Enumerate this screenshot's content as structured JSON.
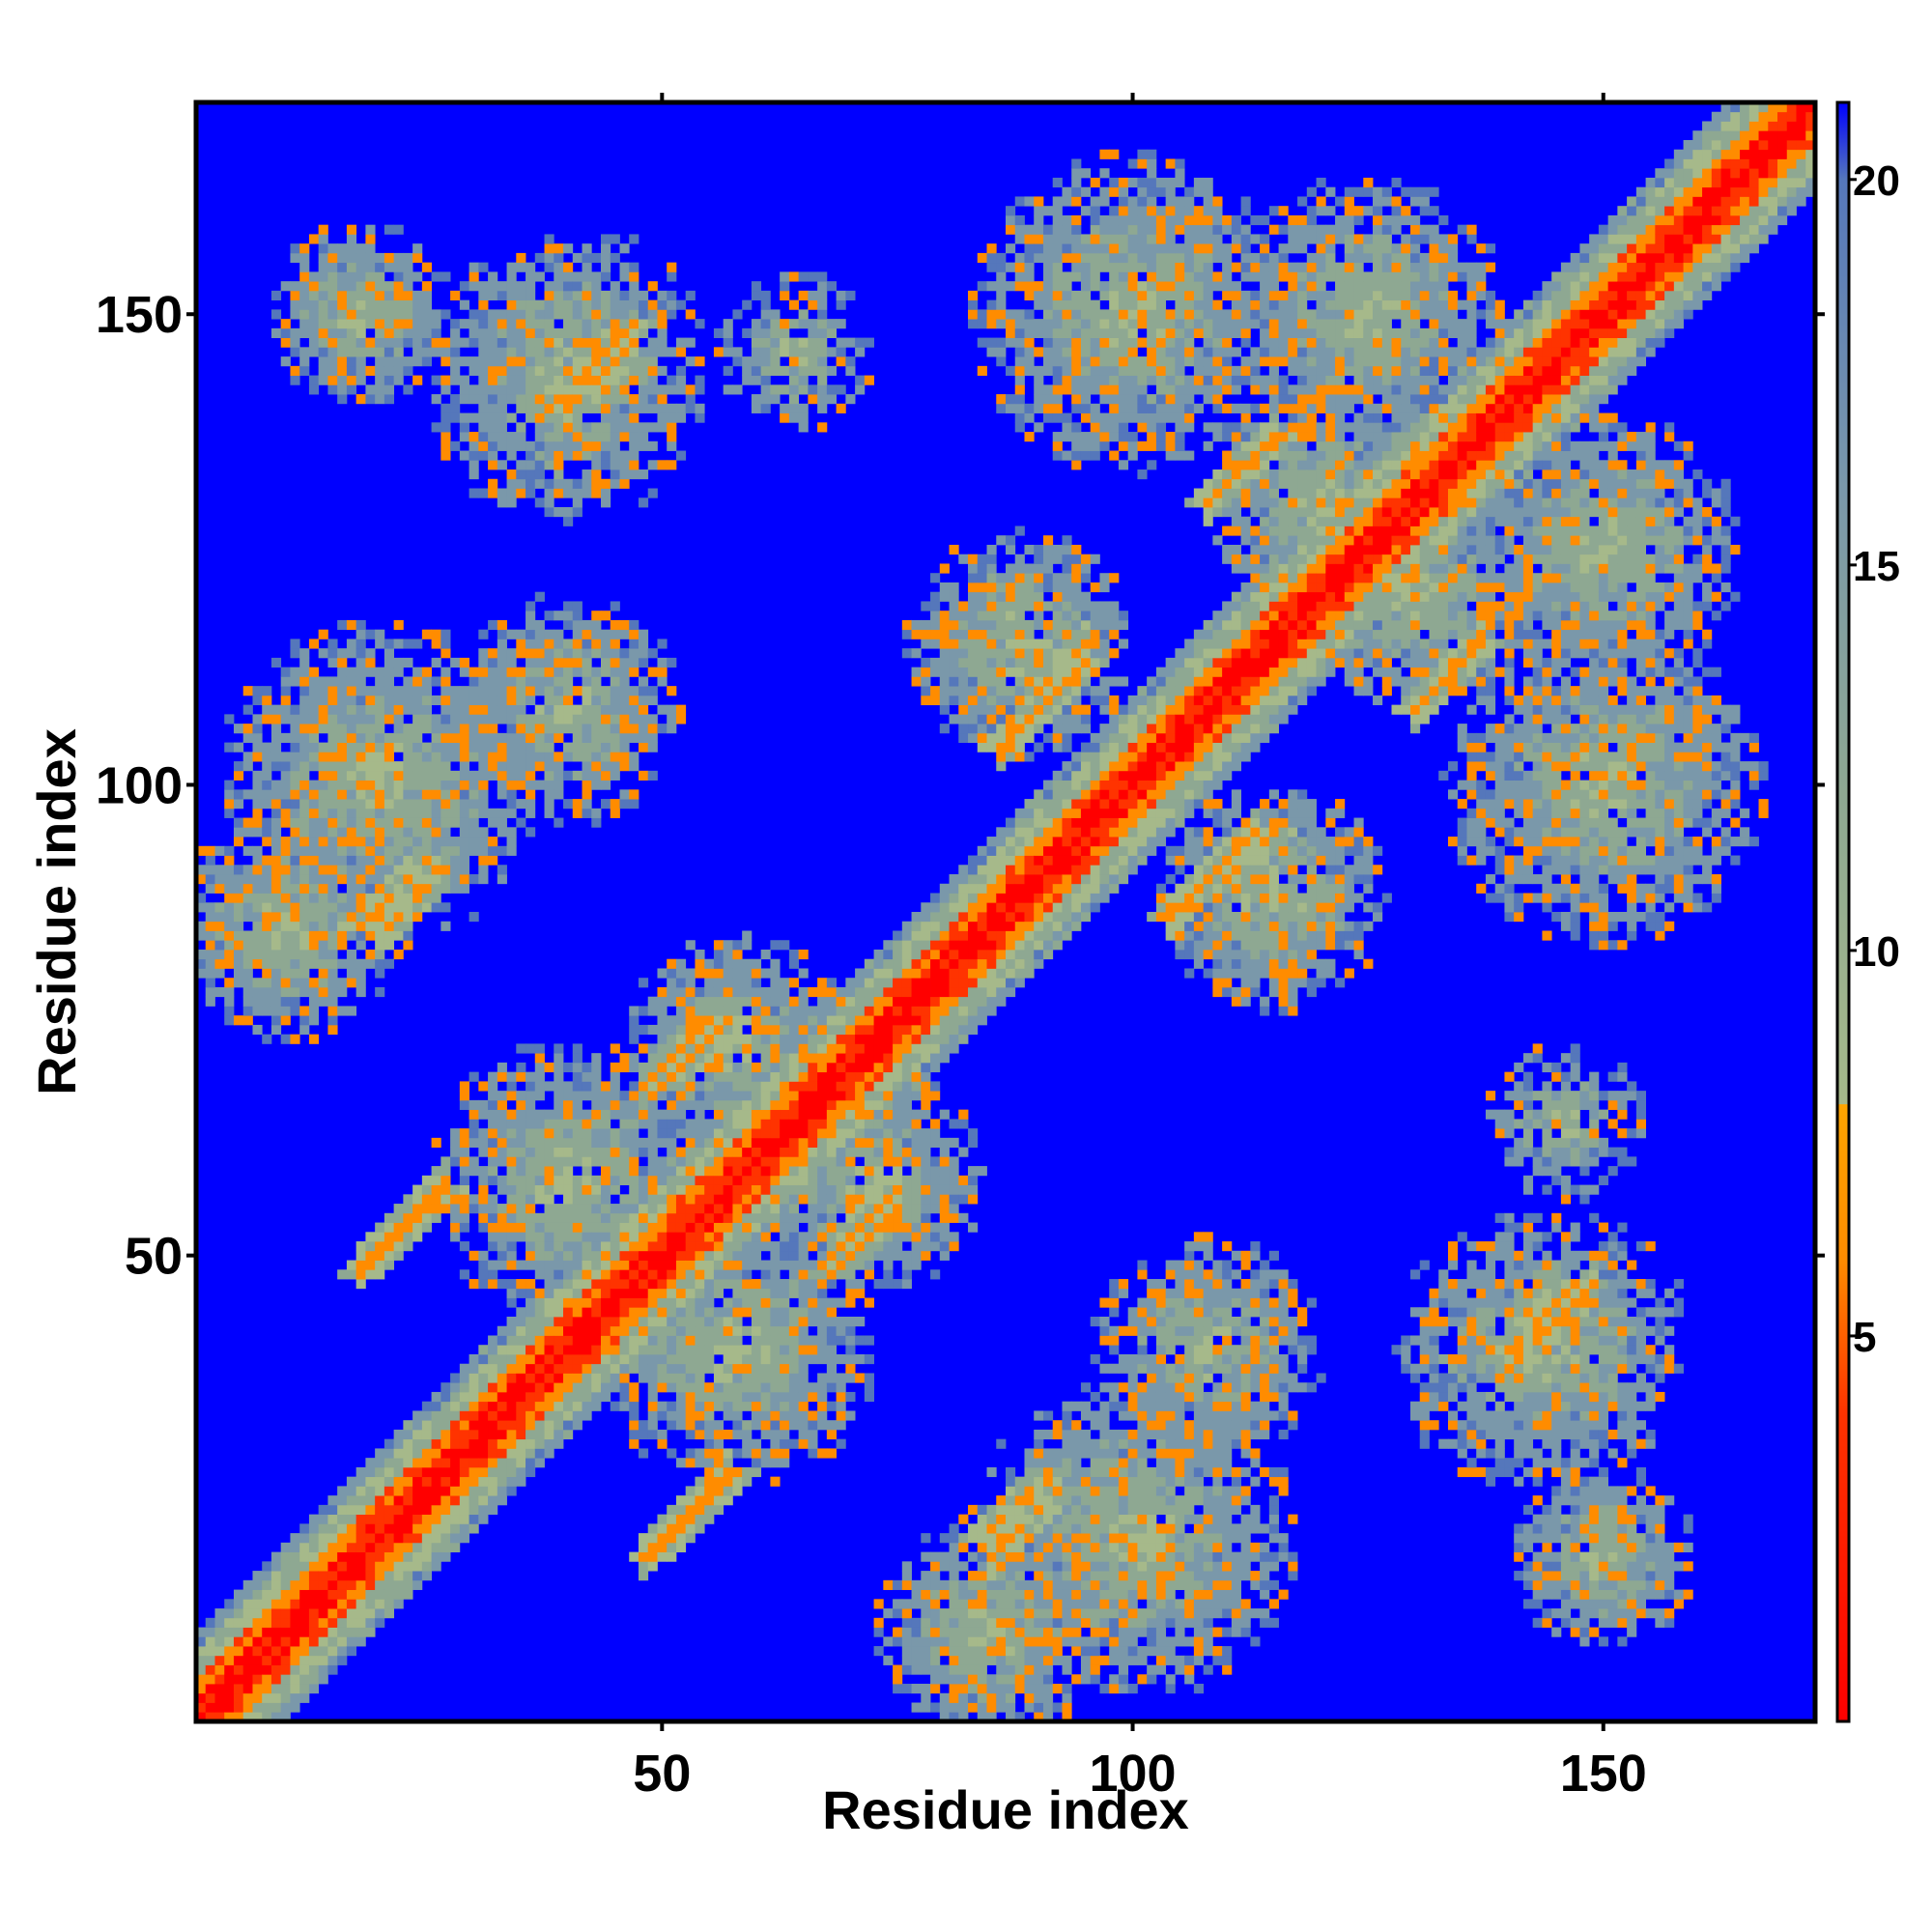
{
  "chart_data": {
    "type": "heatmap",
    "title": "",
    "xlabel": "Residue index",
    "ylabel": "Residue index",
    "n_residues": 172,
    "xlim": [
      1,
      172
    ],
    "ylim": [
      1,
      172
    ],
    "x_ticks": [
      50,
      100,
      150
    ],
    "y_ticks": [
      50,
      100,
      150
    ],
    "x_tick_labels": [
      "50",
      "100",
      "150"
    ],
    "y_tick_labels": [
      "50",
      "100",
      "150"
    ],
    "grid": false,
    "legend": "colorbar-right",
    "colorbar": {
      "range": [
        0,
        21
      ],
      "ticks": [
        5,
        10,
        15,
        20
      ],
      "tick_labels": [
        "5",
        "10",
        "15",
        "20"
      ],
      "colors": [
        {
          "stop": 0,
          "color": "#ff0000"
        },
        {
          "stop": 4,
          "color": "#ff3300"
        },
        {
          "stop": 6,
          "color": "#ff8c00"
        },
        {
          "stop": 8,
          "color": "#ffa500"
        },
        {
          "stop": 8.01,
          "color": "#a6b98a"
        },
        {
          "stop": 12,
          "color": "#8ea892"
        },
        {
          "stop": 16,
          "color": "#7a98aa"
        },
        {
          "stop": 20,
          "color": "#5577bb"
        },
        {
          "stop": 21,
          "color": "#0000ff"
        }
      ],
      "background_color": "#0000ff"
    },
    "description_values": "Symmetric residue-residue distance map; low values (red) along the diagonal, contact bands (orange/green) for secondary-structure pairings, far residues saturate at blue (>=21).",
    "contact_bands": [
      {
        "type": "parallel",
        "x_start": 18,
        "y_start": 48,
        "length": 10,
        "value": 6
      },
      {
        "type": "parallel",
        "x_start": 49,
        "y_start": 18,
        "length": 10,
        "value": 6
      },
      {
        "type": "parallel",
        "x_start": 18,
        "y_start": 85,
        "length": 8,
        "value": 7
      },
      {
        "type": "parallel",
        "x_start": 50,
        "y_start": 68,
        "length": 8,
        "value": 6
      },
      {
        "type": "parallel",
        "x_start": 68,
        "y_start": 48,
        "length": 8,
        "value": 6
      },
      {
        "type": "parallel",
        "x_start": 84,
        "y_start": 20,
        "length": 8,
        "value": 7
      },
      {
        "type": "parallel",
        "x_start": 86,
        "y_start": 104,
        "length": 10,
        "value": 6
      },
      {
        "type": "parallel",
        "x_start": 104,
        "y_start": 86,
        "length": 10,
        "value": 6
      },
      {
        "type": "parallel",
        "x_start": 108,
        "y_start": 130,
        "length": 8,
        "value": 6
      },
      {
        "type": "parallel",
        "x_start": 130,
        "y_start": 108,
        "length": 8,
        "value": 6
      },
      {
        "type": "parallel",
        "x_start": 110,
        "y_start": 90,
        "length": 6,
        "value": 7
      },
      {
        "type": "parallel",
        "x_start": 40,
        "y_start": 142,
        "length": 8,
        "value": 7
      },
      {
        "type": "parallel",
        "x_start": 140,
        "y_start": 40,
        "length": 8,
        "value": 7
      }
    ],
    "contact_clusters": [
      {
        "x": 40,
        "y": 142,
        "radius": 12
      },
      {
        "x": 18,
        "y": 150,
        "radius": 8
      },
      {
        "x": 64,
        "y": 146,
        "radius": 7
      },
      {
        "x": 100,
        "y": 150,
        "radius": 14
      },
      {
        "x": 125,
        "y": 150,
        "radius": 12
      },
      {
        "x": 150,
        "y": 125,
        "radius": 12
      },
      {
        "x": 150,
        "y": 100,
        "radius": 14
      },
      {
        "x": 145,
        "y": 40,
        "radius": 12
      },
      {
        "x": 150,
        "y": 18,
        "radius": 8
      },
      {
        "x": 20,
        "y": 100,
        "radius": 14
      },
      {
        "x": 100,
        "y": 20,
        "radius": 14
      },
      {
        "x": 40,
        "y": 108,
        "radius": 10
      },
      {
        "x": 108,
        "y": 40,
        "radius": 10
      },
      {
        "x": 10,
        "y": 85,
        "radius": 10
      },
      {
        "x": 85,
        "y": 10,
        "radius": 10
      },
      {
        "x": 58,
        "y": 40,
        "radius": 12
      },
      {
        "x": 40,
        "y": 58,
        "radius": 12
      },
      {
        "x": 72,
        "y": 58,
        "radius": 10
      },
      {
        "x": 58,
        "y": 72,
        "radius": 10
      },
      {
        "x": 88,
        "y": 115,
        "radius": 10
      },
      {
        "x": 115,
        "y": 88,
        "radius": 10
      },
      {
        "x": 120,
        "y": 130,
        "radius": 10
      },
      {
        "x": 130,
        "y": 120,
        "radius": 10
      }
    ]
  }
}
